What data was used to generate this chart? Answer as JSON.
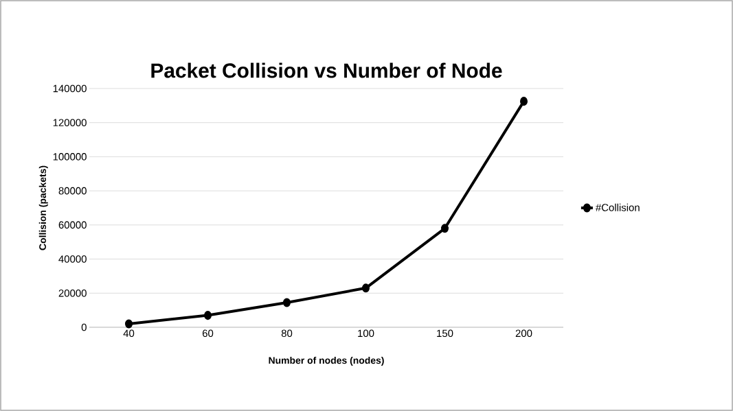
{
  "chart_data": {
    "type": "line",
    "title": "Packet Collision vs Number of Node",
    "xlabel": "Number of nodes (nodes)",
    "ylabel": "Collision (packets)",
    "categories": [
      "40",
      "60",
      "80",
      "100",
      "150",
      "200"
    ],
    "series": [
      {
        "name": "#Collision",
        "color": "#000000",
        "values": [
          2000,
          7000,
          14500,
          23000,
          58000,
          132500
        ]
      }
    ],
    "ylim": [
      0,
      140000
    ],
    "yticks": [
      0,
      20000,
      40000,
      60000,
      80000,
      100000,
      120000,
      140000
    ],
    "grid": "y",
    "legend": "right",
    "marker": "circle",
    "line_style": "solid"
  }
}
